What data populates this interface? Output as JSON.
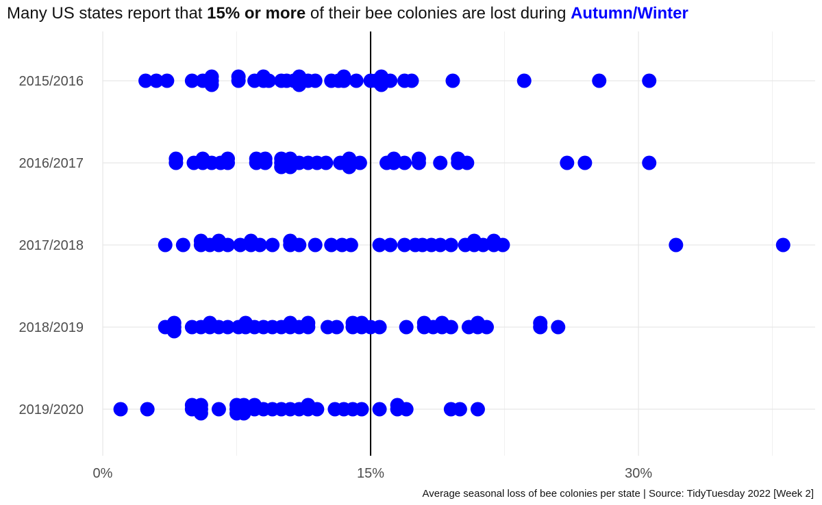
{
  "title": {
    "prefix": "Many US states report that ",
    "emphasis": "15% or more",
    "middle": " of their bee colonies are lost during ",
    "season": "Autumn/Winter"
  },
  "caption": "Average seasonal loss of bee colonies per state | Source: TidyTuesday 2022 [Week 2]",
  "colors": {
    "points": "#0000ff",
    "reference_line": "#000000",
    "grid": "#e6e6e6",
    "tick_text": "#4d4d4d",
    "accent": "#0000ff"
  },
  "chart_data": {
    "type": "scatter",
    "title": "Many US states report that 15% or more of their bee colonies are lost during Autumn/Winter",
    "xlabel": "",
    "ylabel": "",
    "xlim": [
      0,
      40
    ],
    "x_ticks": [
      0,
      15,
      30
    ],
    "x_tick_labels": [
      "0%",
      "15%",
      "30%"
    ],
    "reference_line": 15,
    "grid": true,
    "categories": [
      "2015/2016",
      "2016/2017",
      "2017/2018",
      "2018/2019",
      "2019/2020"
    ],
    "series": [
      {
        "category": "2015/2016",
        "values": [
          2.4,
          3.0,
          3.6,
          5.0,
          5.6,
          6.1,
          6.1,
          6.1,
          7.6,
          7.6,
          8.5,
          9.0,
          9.0,
          9.3,
          10.0,
          10.3,
          10.7,
          11.0,
          11.0,
          11.0,
          11.5,
          11.9,
          12.8,
          13.2,
          13.5,
          13.5,
          14.2,
          15.0,
          15.3,
          15.6,
          15.6,
          15.6,
          16.1,
          16.9,
          17.3,
          19.6,
          23.6,
          27.8,
          30.6
        ]
      },
      {
        "category": "2016/2017",
        "values": [
          4.1,
          4.1,
          5.1,
          5.6,
          5.6,
          6.1,
          6.6,
          7.0,
          7.0,
          8.6,
          8.6,
          9.1,
          9.1,
          10.0,
          10.0,
          10.0,
          10.5,
          10.5,
          10.5,
          11.0,
          11.5,
          12.0,
          12.5,
          13.3,
          13.7,
          13.8,
          13.8,
          14.4,
          15.9,
          16.3,
          16.3,
          16.9,
          17.7,
          17.7,
          18.9,
          19.9,
          19.9,
          20.4,
          26.0,
          27.0,
          30.6
        ]
      },
      {
        "category": "2017/2018",
        "values": [
          3.5,
          4.5,
          5.5,
          5.5,
          6.0,
          6.5,
          6.5,
          7.0,
          7.7,
          8.3,
          8.3,
          8.8,
          9.5,
          10.5,
          10.5,
          11.0,
          11.9,
          12.8,
          13.4,
          13.9,
          15.5,
          16.1,
          16.9,
          17.5,
          17.9,
          18.4,
          18.9,
          19.5,
          20.3,
          20.8,
          20.8,
          21.3,
          21.9,
          21.9,
          22.4,
          32.1,
          38.1
        ]
      },
      {
        "category": "2018/2019",
        "values": [
          3.5,
          4.0,
          4.0,
          4.0,
          5.0,
          5.5,
          6.0,
          6.0,
          6.5,
          7.0,
          7.6,
          8.0,
          8.0,
          8.5,
          9.0,
          9.5,
          10.0,
          10.5,
          10.5,
          11.0,
          11.5,
          11.5,
          12.6,
          13.1,
          14.0,
          14.0,
          14.5,
          14.5,
          15.0,
          15.5,
          17.0,
          18.0,
          18.0,
          18.5,
          19.0,
          19.0,
          19.5,
          20.5,
          21.0,
          21.0,
          21.5,
          24.5,
          24.5,
          25.5
        ]
      },
      {
        "category": "2019/2020",
        "values": [
          1.0,
          2.5,
          5.0,
          5.0,
          5.5,
          5.5,
          5.5,
          6.5,
          7.5,
          7.5,
          7.5,
          7.9,
          7.9,
          7.9,
          8.5,
          8.5,
          9.0,
          9.5,
          10.0,
          10.5,
          11.0,
          11.5,
          11.5,
          12.0,
          13.0,
          13.5,
          14.0,
          14.5,
          15.5,
          16.5,
          16.5,
          17.0,
          19.5,
          20.0,
          21.0
        ]
      }
    ]
  }
}
